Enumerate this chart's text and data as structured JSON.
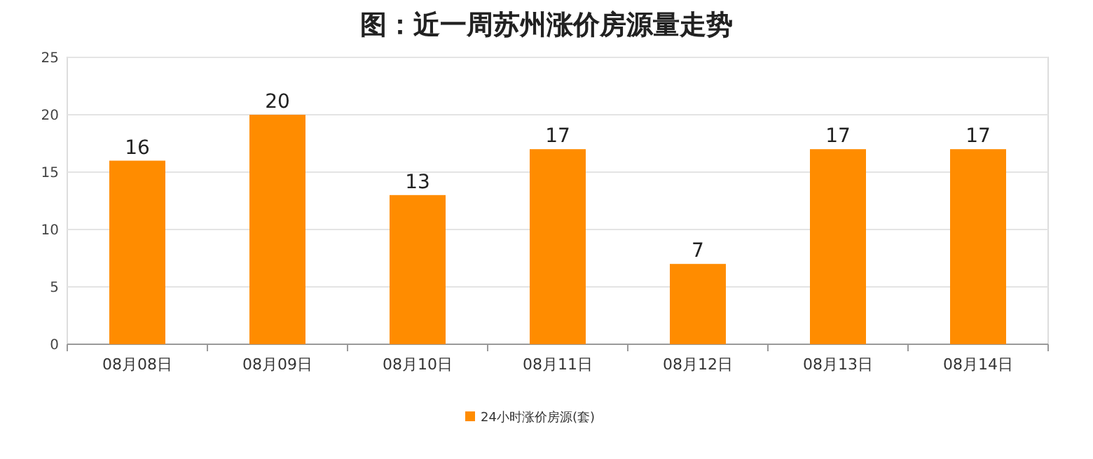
{
  "chart_data": {
    "type": "bar",
    "title": "图：近一周苏州涨价房源量走势",
    "categories": [
      "08月08日",
      "08月09日",
      "08月10日",
      "08月11日",
      "08月12日",
      "08月13日",
      "08月14日"
    ],
    "series": [
      {
        "name": "24小时涨价房源(套)",
        "color": "#ff8c00",
        "values": [
          16,
          20,
          13,
          17,
          7,
          17,
          17
        ]
      }
    ],
    "ylim": [
      0,
      25
    ],
    "yticks": [
      0,
      5,
      10,
      15,
      20,
      25
    ],
    "grid": "y",
    "legend": "bottom",
    "data_labels": true
  }
}
